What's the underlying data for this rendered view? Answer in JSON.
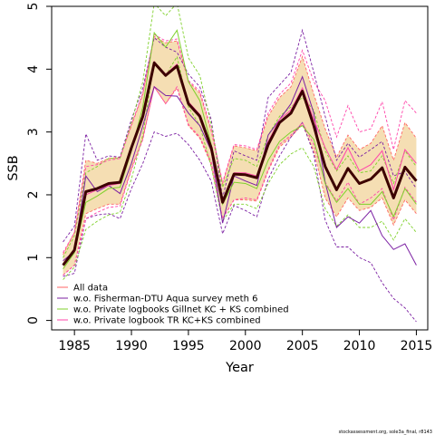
{
  "chart_data": {
    "type": "line",
    "xlabel": "Year",
    "ylabel": "SSB",
    "xlim": [
      1983,
      2016
    ],
    "ylim": [
      -0.15,
      5
    ],
    "x_ticks": [
      1985,
      1990,
      1995,
      2000,
      2005,
      2010,
      2015
    ],
    "y_ticks": [
      0,
      1,
      2,
      3,
      4,
      5
    ],
    "legend_position": "bottom-left",
    "grid": false,
    "footer_text": "stockassessment.org, sole3a_final, r8143",
    "x": [
      1984,
      1985,
      1986,
      1987,
      1988,
      1989,
      1990,
      1991,
      1992,
      1993,
      1994,
      1995,
      1996,
      1997,
      1998,
      1999,
      2000,
      2001,
      2002,
      2003,
      2004,
      2005,
      2006,
      2007,
      2008,
      2009,
      2010,
      2011,
      2012,
      2013,
      2014,
      2015
    ],
    "band_color": "#f5deb3",
    "main_estimate": {
      "color": "#3c0000",
      "values": [
        0.88,
        1.12,
        2.05,
        2.1,
        2.18,
        2.2,
        2.75,
        3.25,
        4.1,
        3.9,
        4.05,
        3.45,
        3.25,
        2.75,
        1.88,
        2.33,
        2.32,
        2.27,
        2.8,
        3.15,
        3.3,
        3.65,
        3.1,
        2.45,
        2.08,
        2.42,
        2.18,
        2.25,
        2.43,
        1.95,
        2.44,
        2.22
      ]
    },
    "confidence_band": {
      "upper": [
        1.05,
        1.4,
        2.55,
        2.5,
        2.58,
        2.6,
        3.1,
        3.6,
        4.52,
        4.42,
        4.45,
        3.8,
        3.62,
        3.02,
        2.18,
        2.78,
        2.75,
        2.7,
        3.25,
        3.55,
        3.72,
        4.2,
        3.6,
        3.05,
        2.6,
        2.95,
        2.72,
        2.82,
        3.1,
        2.55,
        3.15,
        2.9
      ],
      "lower": [
        0.72,
        0.88,
        1.7,
        1.78,
        1.85,
        1.85,
        2.42,
        2.9,
        3.72,
        3.45,
        3.7,
        3.1,
        2.9,
        2.48,
        1.62,
        1.92,
        1.92,
        1.9,
        2.38,
        2.76,
        2.92,
        3.12,
        2.7,
        1.95,
        1.65,
        1.95,
        1.75,
        1.8,
        1.95,
        1.52,
        1.92,
        1.7
      ]
    },
    "series": [
      {
        "name": "All data",
        "color": "#ff6666",
        "values": [
          0.88,
          1.12,
          2.05,
          2.1,
          2.18,
          2.2,
          2.75,
          3.25,
          4.1,
          3.9,
          4.05,
          3.45,
          3.25,
          2.75,
          1.88,
          2.33,
          2.32,
          2.27,
          2.8,
          3.15,
          3.3,
          3.65,
          3.1,
          2.45,
          2.08,
          2.42,
          2.18,
          2.25,
          2.43,
          1.95,
          2.44,
          2.22
        ],
        "upper": [
          1.05,
          1.4,
          2.55,
          2.5,
          2.58,
          2.6,
          3.1,
          3.6,
          4.52,
          4.42,
          4.45,
          3.8,
          3.62,
          3.02,
          2.18,
          2.78,
          2.75,
          2.7,
          3.25,
          3.55,
          3.72,
          4.2,
          3.6,
          3.05,
          2.6,
          2.95,
          2.72,
          2.82,
          3.1,
          2.55,
          3.15,
          2.9
        ],
        "lower": [
          0.72,
          0.88,
          1.7,
          1.78,
          1.85,
          1.85,
          2.42,
          2.9,
          3.72,
          3.45,
          3.7,
          3.1,
          2.9,
          2.48,
          1.62,
          1.92,
          1.92,
          1.9,
          2.38,
          2.76,
          2.92,
          3.12,
          2.7,
          1.95,
          1.65,
          1.95,
          1.75,
          1.8,
          1.95,
          1.52,
          1.92,
          1.7
        ]
      },
      {
        "name": "w.o. Fisherman-DTU Aqua survey meth 6",
        "color": "#7b1fa2",
        "values": [
          0.95,
          1.1,
          2.3,
          2.05,
          2.15,
          2.02,
          2.5,
          3.1,
          3.72,
          3.58,
          3.57,
          3.3,
          3.1,
          2.7,
          1.55,
          2.3,
          2.22,
          2.15,
          2.95,
          3.2,
          3.45,
          3.88,
          3.3,
          2.2,
          1.48,
          1.65,
          1.55,
          1.75,
          1.35,
          1.13,
          1.22,
          0.88
        ],
        "upper": [
          1.25,
          1.5,
          2.97,
          2.55,
          2.62,
          2.6,
          3.2,
          3.7,
          4.5,
          4.35,
          4.27,
          3.92,
          3.72,
          3.2,
          1.95,
          2.7,
          2.62,
          2.55,
          3.55,
          3.75,
          3.95,
          4.62,
          3.95,
          3.25,
          2.55,
          2.82,
          2.6,
          2.72,
          2.85,
          2.3,
          2.37,
          2.1
        ],
        "lower": [
          0.7,
          0.75,
          1.62,
          1.68,
          1.7,
          1.62,
          2.1,
          2.5,
          3.0,
          2.93,
          2.98,
          2.8,
          2.55,
          2.22,
          1.38,
          1.83,
          1.75,
          1.65,
          2.25,
          2.62,
          2.92,
          3.15,
          2.65,
          1.6,
          1.17,
          1.17,
          1.0,
          0.92,
          0.6,
          0.35,
          0.2,
          -0.02
        ]
      },
      {
        "name": "w.o. Private logbooks Gillnet KC + KS combined",
        "color": "#7fd12b",
        "values": [
          0.82,
          1.08,
          1.88,
          1.98,
          2.1,
          2.12,
          2.7,
          3.4,
          4.58,
          4.35,
          4.62,
          3.8,
          3.5,
          2.8,
          1.85,
          2.2,
          2.18,
          2.1,
          2.55,
          2.85,
          3.0,
          3.1,
          2.88,
          2.18,
          1.88,
          2.1,
          1.85,
          1.85,
          2.05,
          1.65,
          2.1,
          1.85
        ],
        "upper": [
          1.0,
          1.35,
          2.35,
          2.45,
          2.58,
          2.58,
          3.15,
          3.8,
          5.05,
          4.85,
          5.05,
          4.18,
          3.9,
          3.12,
          2.12,
          2.58,
          2.55,
          2.45,
          2.95,
          3.25,
          3.4,
          3.55,
          3.35,
          2.7,
          2.38,
          2.62,
          2.35,
          2.38,
          2.62,
          2.18,
          2.7,
          2.45
        ],
        "lower": [
          0.65,
          0.85,
          1.45,
          1.58,
          1.68,
          1.72,
          2.25,
          2.95,
          4.12,
          3.9,
          4.2,
          3.4,
          3.1,
          2.45,
          1.58,
          1.85,
          1.85,
          1.78,
          2.18,
          2.48,
          2.65,
          2.75,
          2.45,
          1.78,
          1.5,
          1.68,
          1.48,
          1.48,
          1.58,
          1.28,
          1.62,
          1.4
        ]
      },
      {
        "name": "w.o. Private logbook TR KC+KS combined",
        "color": "#ff44aa",
        "values": [
          0.9,
          1.12,
          2.0,
          2.08,
          2.15,
          2.18,
          2.75,
          3.25,
          4.12,
          3.92,
          4.08,
          3.48,
          3.28,
          2.78,
          1.9,
          2.35,
          2.35,
          2.3,
          2.85,
          3.2,
          3.35,
          3.7,
          3.2,
          2.75,
          2.4,
          2.75,
          2.38,
          2.48,
          2.7,
          2.08,
          2.72,
          2.5
        ],
        "upper": [
          1.08,
          1.4,
          2.45,
          2.48,
          2.55,
          2.58,
          3.12,
          3.62,
          4.55,
          4.45,
          4.48,
          3.82,
          3.65,
          3.05,
          2.2,
          2.8,
          2.78,
          2.72,
          3.3,
          3.6,
          3.78,
          4.3,
          3.8,
          3.5,
          2.92,
          3.42,
          3.0,
          3.05,
          3.48,
          2.72,
          3.5,
          3.3
        ],
        "lower": [
          0.72,
          0.88,
          1.62,
          1.72,
          1.8,
          1.82,
          2.4,
          2.88,
          3.72,
          3.45,
          3.72,
          3.12,
          2.92,
          2.52,
          1.62,
          1.92,
          1.95,
          1.92,
          2.4,
          2.8,
          2.95,
          3.15,
          2.8,
          2.2,
          1.9,
          2.2,
          1.85,
          1.95,
          2.1,
          1.6,
          2.12,
          1.88
        ]
      }
    ]
  }
}
